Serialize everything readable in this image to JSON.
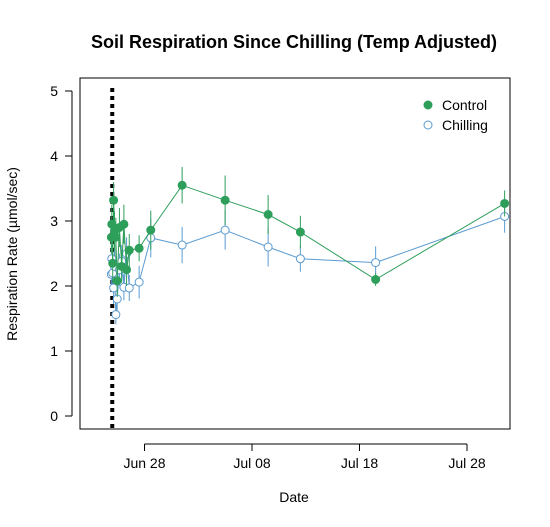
{
  "chart_data": {
    "type": "line",
    "title": "Soil Respiration Since Chilling (Temp Adjusted)",
    "xlabel": "Date",
    "ylabel": "Respiration Rate (µmol/sec)",
    "x_ticks": [
      "Jun 28",
      "Jul 08",
      "Jul 18",
      "Jul 28"
    ],
    "y_ticks": [
      "0",
      "1",
      "2",
      "3",
      "4",
      "5"
    ],
    "xlim": [
      "2023-06-22",
      "2023-08-01"
    ],
    "ylim": [
      -0.2,
      5.2
    ],
    "grid": false,
    "legend_position": "top-right",
    "reference_line": {
      "x": "2023-06-25",
      "style": "dotted",
      "color": "#000000"
    },
    "series": [
      {
        "name": "Control",
        "color": "#2E9E5B",
        "marker": "filled-circle",
        "points": [
          {
            "x": "2023-06-24 22:00",
            "y": 2.75,
            "err": 0.25
          },
          {
            "x": "2023-06-24 23:00",
            "y": 2.95,
            "err": 0.3
          },
          {
            "x": "2023-06-25 01:00",
            "y": 2.35,
            "err": 0.3
          },
          {
            "x": "2023-06-25 03:00",
            "y": 3.32,
            "err": 0.28
          },
          {
            "x": "2023-06-25 05:00",
            "y": 2.85,
            "err": 0.3
          },
          {
            "x": "2023-06-25 08:00",
            "y": 2.75,
            "err": 0.3
          },
          {
            "x": "2023-06-25 11:00",
            "y": 2.08,
            "err": 0.25
          },
          {
            "x": "2023-06-25 16:00",
            "y": 2.9,
            "err": 0.3
          },
          {
            "x": "2023-06-25 21:00",
            "y": 2.3,
            "err": 0.25
          },
          {
            "x": "2023-06-26 02:00",
            "y": 2.95,
            "err": 0.3
          },
          {
            "x": "2023-06-26 08:00",
            "y": 2.25,
            "err": 0.25
          },
          {
            "x": "2023-06-26 14:00",
            "y": 2.55,
            "err": 0.25
          },
          {
            "x": "2023-06-27 12:00",
            "y": 2.58,
            "err": 0.2
          },
          {
            "x": "2023-06-28 14:00",
            "y": 2.86,
            "err": 0.3
          },
          {
            "x": "2023-07-01 12:00",
            "y": 3.55,
            "err": 0.28
          },
          {
            "x": "2023-07-05 12:00",
            "y": 3.32,
            "err": 0.38
          },
          {
            "x": "2023-07-09 12:00",
            "y": 3.1,
            "err": 0.3
          },
          {
            "x": "2023-07-12 12:00",
            "y": 2.83,
            "err": 0.25
          },
          {
            "x": "2023-07-19 12:00",
            "y": 2.1,
            "err": 0.1
          },
          {
            "x": "2023-07-31 12:00",
            "y": 3.27,
            "err": 0.2
          }
        ]
      },
      {
        "name": "Chilling",
        "color": "#5B9BD0",
        "marker": "open-circle",
        "points": [
          {
            "x": "2023-06-24 22:00",
            "y": 2.18,
            "err": 0.25
          },
          {
            "x": "2023-06-24 23:00",
            "y": 2.42,
            "err": 0.25
          },
          {
            "x": "2023-06-25 01:00",
            "y": 2.2,
            "err": 0.25
          },
          {
            "x": "2023-06-25 03:00",
            "y": 1.97,
            "err": 0.25
          },
          {
            "x": "2023-06-25 05:00",
            "y": 2.3,
            "err": 0.3
          },
          {
            "x": "2023-06-25 08:00",
            "y": 1.56,
            "err": 0.15
          },
          {
            "x": "2023-06-25 11:00",
            "y": 1.8,
            "err": 0.25
          },
          {
            "x": "2023-06-25 16:00",
            "y": 2.25,
            "err": 0.25
          },
          {
            "x": "2023-06-25 21:00",
            "y": 2.38,
            "err": 0.25
          },
          {
            "x": "2023-06-26 02:00",
            "y": 1.98,
            "err": 0.2
          },
          {
            "x": "2023-06-26 08:00",
            "y": 2.5,
            "err": 0.25
          },
          {
            "x": "2023-06-26 14:00",
            "y": 1.97,
            "err": 0.2
          },
          {
            "x": "2023-06-27 12:00",
            "y": 2.06,
            "err": 0.25
          },
          {
            "x": "2023-06-28 14:00",
            "y": 2.74,
            "err": 0.3
          },
          {
            "x": "2023-07-01 12:00",
            "y": 2.63,
            "err": 0.28
          },
          {
            "x": "2023-07-05 12:00",
            "y": 2.86,
            "err": 0.3
          },
          {
            "x": "2023-07-09 12:00",
            "y": 2.6,
            "err": 0.3
          },
          {
            "x": "2023-07-12 12:00",
            "y": 2.42,
            "err": 0.2
          },
          {
            "x": "2023-07-19 12:00",
            "y": 2.36,
            "err": 0.25
          },
          {
            "x": "2023-07-31 12:00",
            "y": 3.07,
            "err": 0.25
          }
        ]
      }
    ]
  }
}
